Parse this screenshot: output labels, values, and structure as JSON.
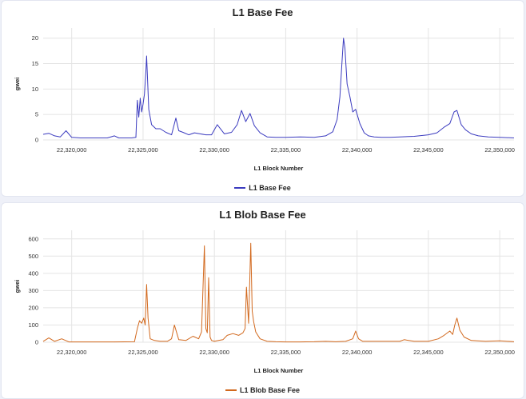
{
  "chart_data": [
    {
      "type": "line",
      "title": "L1 Base Fee",
      "xlabel": "L1 Block Number",
      "ylabel": "gwei",
      "xlim": [
        22318000,
        22351000
      ],
      "ylim": [
        0,
        22
      ],
      "xticks": [
        22320000,
        22325000,
        22330000,
        22335000,
        22340000,
        22345000,
        22350000
      ],
      "xtick_labels": [
        "22,320,000",
        "22,325,000",
        "22,330,000",
        "22,335,000",
        "22,340,000",
        "22,345,000",
        "22,350,000"
      ],
      "yticks": [
        0,
        5,
        10,
        15,
        20
      ],
      "ytick_labels": [
        "0",
        "5",
        "10",
        "15",
        "20"
      ],
      "grid": true,
      "legend": "bottom-center",
      "color": "#3b3bbf",
      "series": [
        {
          "name": "L1 Base Fee",
          "x": [
            22318000,
            22318400,
            22318800,
            22319200,
            22319600,
            22320000,
            22320600,
            22321500,
            22322500,
            22323000,
            22323300,
            22323700,
            22324200,
            22324500,
            22324600,
            22324700,
            22324800,
            22324900,
            22325000,
            22325100,
            22325200,
            22325250,
            22325300,
            22325400,
            22325600,
            22325900,
            22326200,
            22326600,
            22327000,
            22327300,
            22327500,
            22327800,
            22328200,
            22328600,
            22329000,
            22329400,
            22329800,
            22330200,
            22330700,
            22331200,
            22331600,
            22331900,
            22332200,
            22332500,
            22332800,
            22333200,
            22333700,
            22334300,
            22335000,
            22336000,
            22337000,
            22337800,
            22338300,
            22338600,
            22338800,
            22338950,
            22339050,
            22339150,
            22339300,
            22339500,
            22339700,
            22339900,
            22340200,
            22340500,
            22340800,
            22341200,
            22341700,
            22342300,
            22343000,
            22344000,
            22345000,
            22345600,
            22346100,
            22346500,
            22346800,
            22347000,
            22347300,
            22347600,
            22348000,
            22348500,
            22349200,
            22350000,
            22351000
          ],
          "values": [
            1.1,
            1.3,
            0.8,
            0.6,
            1.8,
            0.5,
            0.4,
            0.4,
            0.4,
            0.8,
            0.4,
            0.4,
            0.4,
            0.5,
            7.8,
            4.5,
            8.2,
            5.5,
            7.0,
            9.0,
            13.5,
            16.5,
            13.0,
            6.0,
            3.0,
            2.2,
            2.2,
            1.5,
            1.0,
            4.3,
            1.8,
            1.5,
            1.0,
            1.4,
            1.2,
            1.0,
            1.0,
            3.0,
            1.2,
            1.5,
            3.0,
            5.8,
            3.6,
            5.2,
            2.8,
            1.4,
            0.6,
            0.5,
            0.5,
            0.6,
            0.5,
            0.8,
            1.6,
            4.0,
            8.5,
            15.5,
            20.0,
            18.0,
            11.0,
            8.5,
            5.5,
            6.0,
            3.2,
            1.4,
            0.8,
            0.6,
            0.5,
            0.5,
            0.6,
            0.7,
            1.0,
            1.4,
            2.5,
            3.2,
            5.5,
            5.8,
            3.0,
            2.0,
            1.2,
            0.8,
            0.6,
            0.5,
            0.4
          ]
        }
      ]
    },
    {
      "type": "line",
      "title": "L1 Blob Base Fee",
      "xlabel": "L1 Block Number",
      "ylabel": "gwei",
      "xlim": [
        22318000,
        22351000
      ],
      "ylim": [
        0,
        650
      ],
      "xticks": [
        22320000,
        22325000,
        22330000,
        22335000,
        22340000,
        22345000,
        22350000
      ],
      "xtick_labels": [
        "22,320,000",
        "22,325,000",
        "22,330,000",
        "22,335,000",
        "22,340,000",
        "22,345,000",
        "22,350,000"
      ],
      "yticks": [
        0,
        100,
        200,
        300,
        400,
        500,
        600
      ],
      "ytick_labels": [
        "0",
        "100",
        "200",
        "300",
        "400",
        "500",
        "600"
      ],
      "grid": true,
      "legend": "bottom-center",
      "color": "#d2691e",
      "series": [
        {
          "name": "L1 Blob Base Fee",
          "x": [
            22318000,
            22318400,
            22318800,
            22319300,
            22319800,
            22320300,
            22321500,
            22323000,
            22324400,
            22324600,
            22324750,
            22324900,
            22325050,
            22325150,
            22325250,
            22325350,
            22325500,
            22325800,
            22326200,
            22326700,
            22327000,
            22327200,
            22327500,
            22328000,
            22328500,
            22328900,
            22329100,
            22329300,
            22329400,
            22329500,
            22329600,
            22329700,
            22329800,
            22330000,
            22330300,
            22330600,
            22330900,
            22331300,
            22331700,
            22332000,
            22332150,
            22332250,
            22332400,
            22332550,
            22332650,
            22332750,
            22332900,
            22333200,
            22333700,
            22334300,
            22335000,
            22336000,
            22337000,
            22337800,
            22338500,
            22339200,
            22339700,
            22339900,
            22340100,
            22340400,
            22341000,
            22342000,
            22343000,
            22343300,
            22344000,
            22345000,
            22345700,
            22346100,
            22346500,
            22346700,
            22346850,
            22347000,
            22347200,
            22347500,
            22348000,
            22349000,
            22350000,
            22351000
          ],
          "values": [
            5,
            25,
            5,
            20,
            2,
            2,
            2,
            2,
            3,
            80,
            125,
            110,
            140,
            100,
            335,
            140,
            20,
            10,
            5,
            5,
            20,
            100,
            15,
            10,
            35,
            20,
            60,
            560,
            80,
            55,
            375,
            30,
            10,
            5,
            10,
            15,
            40,
            50,
            40,
            55,
            80,
            320,
            110,
            575,
            180,
            120,
            60,
            20,
            5,
            3,
            2,
            2,
            3,
            5,
            3,
            5,
            20,
            65,
            20,
            5,
            5,
            5,
            5,
            15,
            5,
            5,
            20,
            40,
            65,
            45,
            100,
            140,
            70,
            30,
            10,
            5,
            8,
            3
          ]
        }
      ]
    }
  ]
}
